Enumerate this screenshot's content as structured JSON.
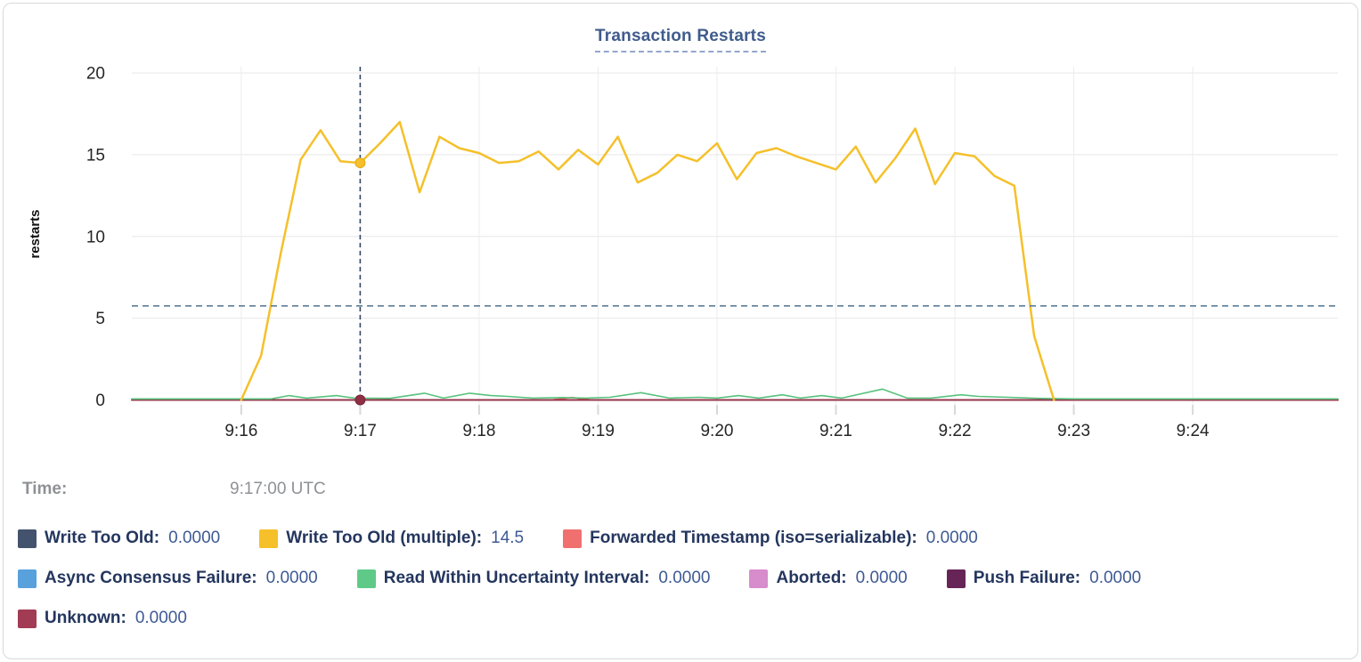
{
  "header": {
    "title": "Transaction Restarts"
  },
  "tooltip": {
    "label": "Time:",
    "value": "9:17:00 UTC"
  },
  "legend": {
    "rows": [
      [
        {
          "label": "Write Too Old:",
          "value": "0.0000",
          "color": "#44536d"
        },
        {
          "label": "Write Too Old (multiple):",
          "value": "14.5",
          "color": "#f5c02a"
        },
        {
          "label": "Forwarded Timestamp (iso=serializable):",
          "value": "0.0000",
          "color": "#f07070"
        }
      ],
      [
        {
          "label": "Async Consensus Failure:",
          "value": "0.0000",
          "color": "#59a1dc"
        },
        {
          "label": "Read Within Uncertainty Interval:",
          "value": "0.0000",
          "color": "#5fca87"
        },
        {
          "label": "Aborted:",
          "value": "0.0000",
          "color": "#d78ccb"
        },
        {
          "label": "Push Failure:",
          "value": "0.0000",
          "color": "#672557"
        }
      ],
      [
        {
          "label": "Unknown:",
          "value": "0.0000",
          "color": "#a23c55"
        }
      ]
    ]
  },
  "chart_data": {
    "type": "line",
    "title": "Transaction Restarts",
    "xlabel": "",
    "ylabel": "restarts",
    "ylim": [
      0,
      20
    ],
    "y_ticks": [
      0,
      5,
      10,
      15,
      20
    ],
    "x_unit": "minutes_after_midnight_utc",
    "x_domain_minutes": [
      555.08,
      565.22
    ],
    "x_ticks": [
      {
        "t": 556,
        "label": "9:16"
      },
      {
        "t": 557,
        "label": "9:17"
      },
      {
        "t": 558,
        "label": "9:18"
      },
      {
        "t": 559,
        "label": "9:19"
      },
      {
        "t": 560,
        "label": "9:20"
      },
      {
        "t": 561,
        "label": "9:21"
      },
      {
        "t": 562,
        "label": "9:22"
      },
      {
        "t": 563,
        "label": "9:23"
      },
      {
        "t": 564,
        "label": "9:24"
      }
    ],
    "grid": true,
    "legend_position": "bottom",
    "crosshair": {
      "time_label": "9:17:00 UTC",
      "t": 557.0,
      "hline_value": 5.75,
      "highlight_series": "Write Too Old (multiple)",
      "highlight_value": 14.5,
      "zero_dot_series": "Unknown",
      "zero_dot_value": 0
    },
    "series": [
      {
        "name": "Write Too Old",
        "color": "#44536d",
        "points": [
          [
            555.08,
            0
          ],
          [
            565.22,
            0
          ]
        ]
      },
      {
        "name": "Write Too Old (multiple)",
        "color": "#f5c02a",
        "points": [
          [
            556.0,
            0
          ],
          [
            556.167,
            2.7
          ],
          [
            556.333,
            9.0
          ],
          [
            556.5,
            14.7
          ],
          [
            556.667,
            16.5
          ],
          [
            556.833,
            14.6
          ],
          [
            557.0,
            14.5
          ],
          [
            557.167,
            15.7
          ],
          [
            557.333,
            17.0
          ],
          [
            557.5,
            12.7
          ],
          [
            557.667,
            16.1
          ],
          [
            557.833,
            15.4
          ],
          [
            558.0,
            15.1
          ],
          [
            558.167,
            14.5
          ],
          [
            558.333,
            14.6
          ],
          [
            558.5,
            15.2
          ],
          [
            558.667,
            14.1
          ],
          [
            558.833,
            15.3
          ],
          [
            559.0,
            14.4
          ],
          [
            559.167,
            16.1
          ],
          [
            559.333,
            13.3
          ],
          [
            559.5,
            13.9
          ],
          [
            559.667,
            15.0
          ],
          [
            559.833,
            14.6
          ],
          [
            560.0,
            15.7
          ],
          [
            560.167,
            13.5
          ],
          [
            560.333,
            15.1
          ],
          [
            560.5,
            15.4
          ],
          [
            560.667,
            14.9
          ],
          [
            560.833,
            14.5
          ],
          [
            561.0,
            14.1
          ],
          [
            561.167,
            15.5
          ],
          [
            561.333,
            13.3
          ],
          [
            561.5,
            14.8
          ],
          [
            561.667,
            16.6
          ],
          [
            561.833,
            13.2
          ],
          [
            562.0,
            15.1
          ],
          [
            562.167,
            14.9
          ],
          [
            562.333,
            13.7
          ],
          [
            562.5,
            13.1
          ],
          [
            562.667,
            3.9
          ],
          [
            562.833,
            0
          ]
        ]
      },
      {
        "name": "Forwarded Timestamp (iso=serializable)",
        "color": "#ef5e5e",
        "points": [
          [
            555.08,
            0
          ],
          [
            558.6,
            0
          ],
          [
            558.78,
            0.15
          ],
          [
            558.95,
            0
          ],
          [
            565.22,
            0
          ]
        ]
      },
      {
        "name": "Async Consensus Failure",
        "color": "#59a1dc",
        "points": [
          [
            555.08,
            0
          ],
          [
            565.22,
            0
          ]
        ]
      },
      {
        "name": "Read Within Uncertainty Interval",
        "color": "#57c27d",
        "points": [
          [
            555.08,
            0
          ],
          [
            556.25,
            0
          ],
          [
            556.4,
            0.2
          ],
          [
            556.55,
            0.05
          ],
          [
            556.8,
            0.2
          ],
          [
            556.95,
            0.05
          ],
          [
            557.25,
            0.03
          ],
          [
            557.54,
            0.35
          ],
          [
            557.7,
            0.05
          ],
          [
            557.92,
            0.35
          ],
          [
            558.1,
            0.2
          ],
          [
            558.24,
            0.15
          ],
          [
            558.45,
            0.05
          ],
          [
            558.7,
            0.08
          ],
          [
            558.9,
            0.05
          ],
          [
            559.1,
            0.1
          ],
          [
            559.36,
            0.38
          ],
          [
            559.6,
            0.05
          ],
          [
            559.85,
            0.1
          ],
          [
            560.0,
            0.05
          ],
          [
            560.18,
            0.2
          ],
          [
            560.35,
            0.05
          ],
          [
            560.55,
            0.25
          ],
          [
            560.7,
            0.05
          ],
          [
            560.88,
            0.2
          ],
          [
            561.05,
            0.05
          ],
          [
            561.39,
            0.6
          ],
          [
            561.6,
            0.05
          ],
          [
            561.8,
            0.05
          ],
          [
            562.05,
            0.25
          ],
          [
            562.2,
            0.15
          ],
          [
            562.45,
            0.1
          ],
          [
            562.7,
            0.03
          ],
          [
            563.0,
            0
          ],
          [
            565.22,
            0
          ]
        ]
      },
      {
        "name": "Aborted",
        "color": "#d78ccb",
        "points": [
          [
            555.08,
            0
          ],
          [
            565.22,
            0
          ]
        ]
      },
      {
        "name": "Push Failure",
        "color": "#672557",
        "points": [
          [
            555.08,
            0
          ],
          [
            565.22,
            0
          ]
        ]
      },
      {
        "name": "Unknown",
        "color": "#96344a",
        "points": [
          [
            555.08,
            0
          ],
          [
            565.22,
            0
          ]
        ]
      }
    ]
  },
  "colors": {
    "grid": "#e7e7e7",
    "tick_text": "#262626",
    "axis_label": "#111111",
    "crosshair_vertical": "#2f4a66",
    "crosshair_horizontal": "#5b7d99",
    "title_text": "#3f5c8c",
    "legend_label": "#24365e",
    "legend_value": "#3e5a94",
    "time_gray": "#8f9196"
  }
}
